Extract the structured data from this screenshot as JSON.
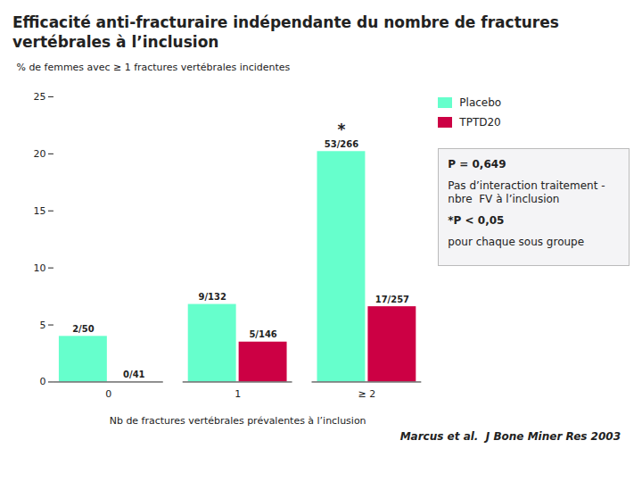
{
  "chart_data": {
    "type": "bar",
    "title": "Efficacité anti-fracturaire indépendante du nombre de fractures vertébrales à l’inclusion",
    "xlabel": "Nb de fractures vertébrales prévalentes à l’inclusion",
    "ylabel": "% de femmes avec ≥ 1 fractures vertébrales incidentes",
    "categories": [
      "0",
      "1",
      "≥ 2"
    ],
    "series": [
      {
        "name": "Placebo",
        "color": "#66FFCC",
        "values": [
          4.0,
          6.8,
          20.2
        ],
        "value_labels": [
          "2/50",
          "9/132",
          "53/266"
        ]
      },
      {
        "name": "TPTD20",
        "color": "#CC0044",
        "values": [
          0.0,
          3.5,
          6.6
        ],
        "value_labels": [
          "0/41",
          "5/146",
          "17/257"
        ]
      }
    ],
    "ylim": [
      0,
      25
    ],
    "yticks": [
      0,
      5,
      10,
      15,
      20,
      25
    ],
    "grid": false,
    "legend": "right",
    "data_labels": true,
    "annotations": [
      {
        "text": "*",
        "category": "≥ 2",
        "series": "Placebo"
      },
      {
        "text": "P = 0,649",
        "bold": true
      },
      {
        "text": "Pas d’interaction traitement -\nnbre  FV à l’inclusion"
      },
      {
        "text": "*P < 0,05",
        "bold": true
      },
      {
        "text": "pour chaque sous groupe"
      },
      {
        "text": "Marcus et al.  J Bone Miner Res 2003",
        "source": true
      }
    ]
  }
}
